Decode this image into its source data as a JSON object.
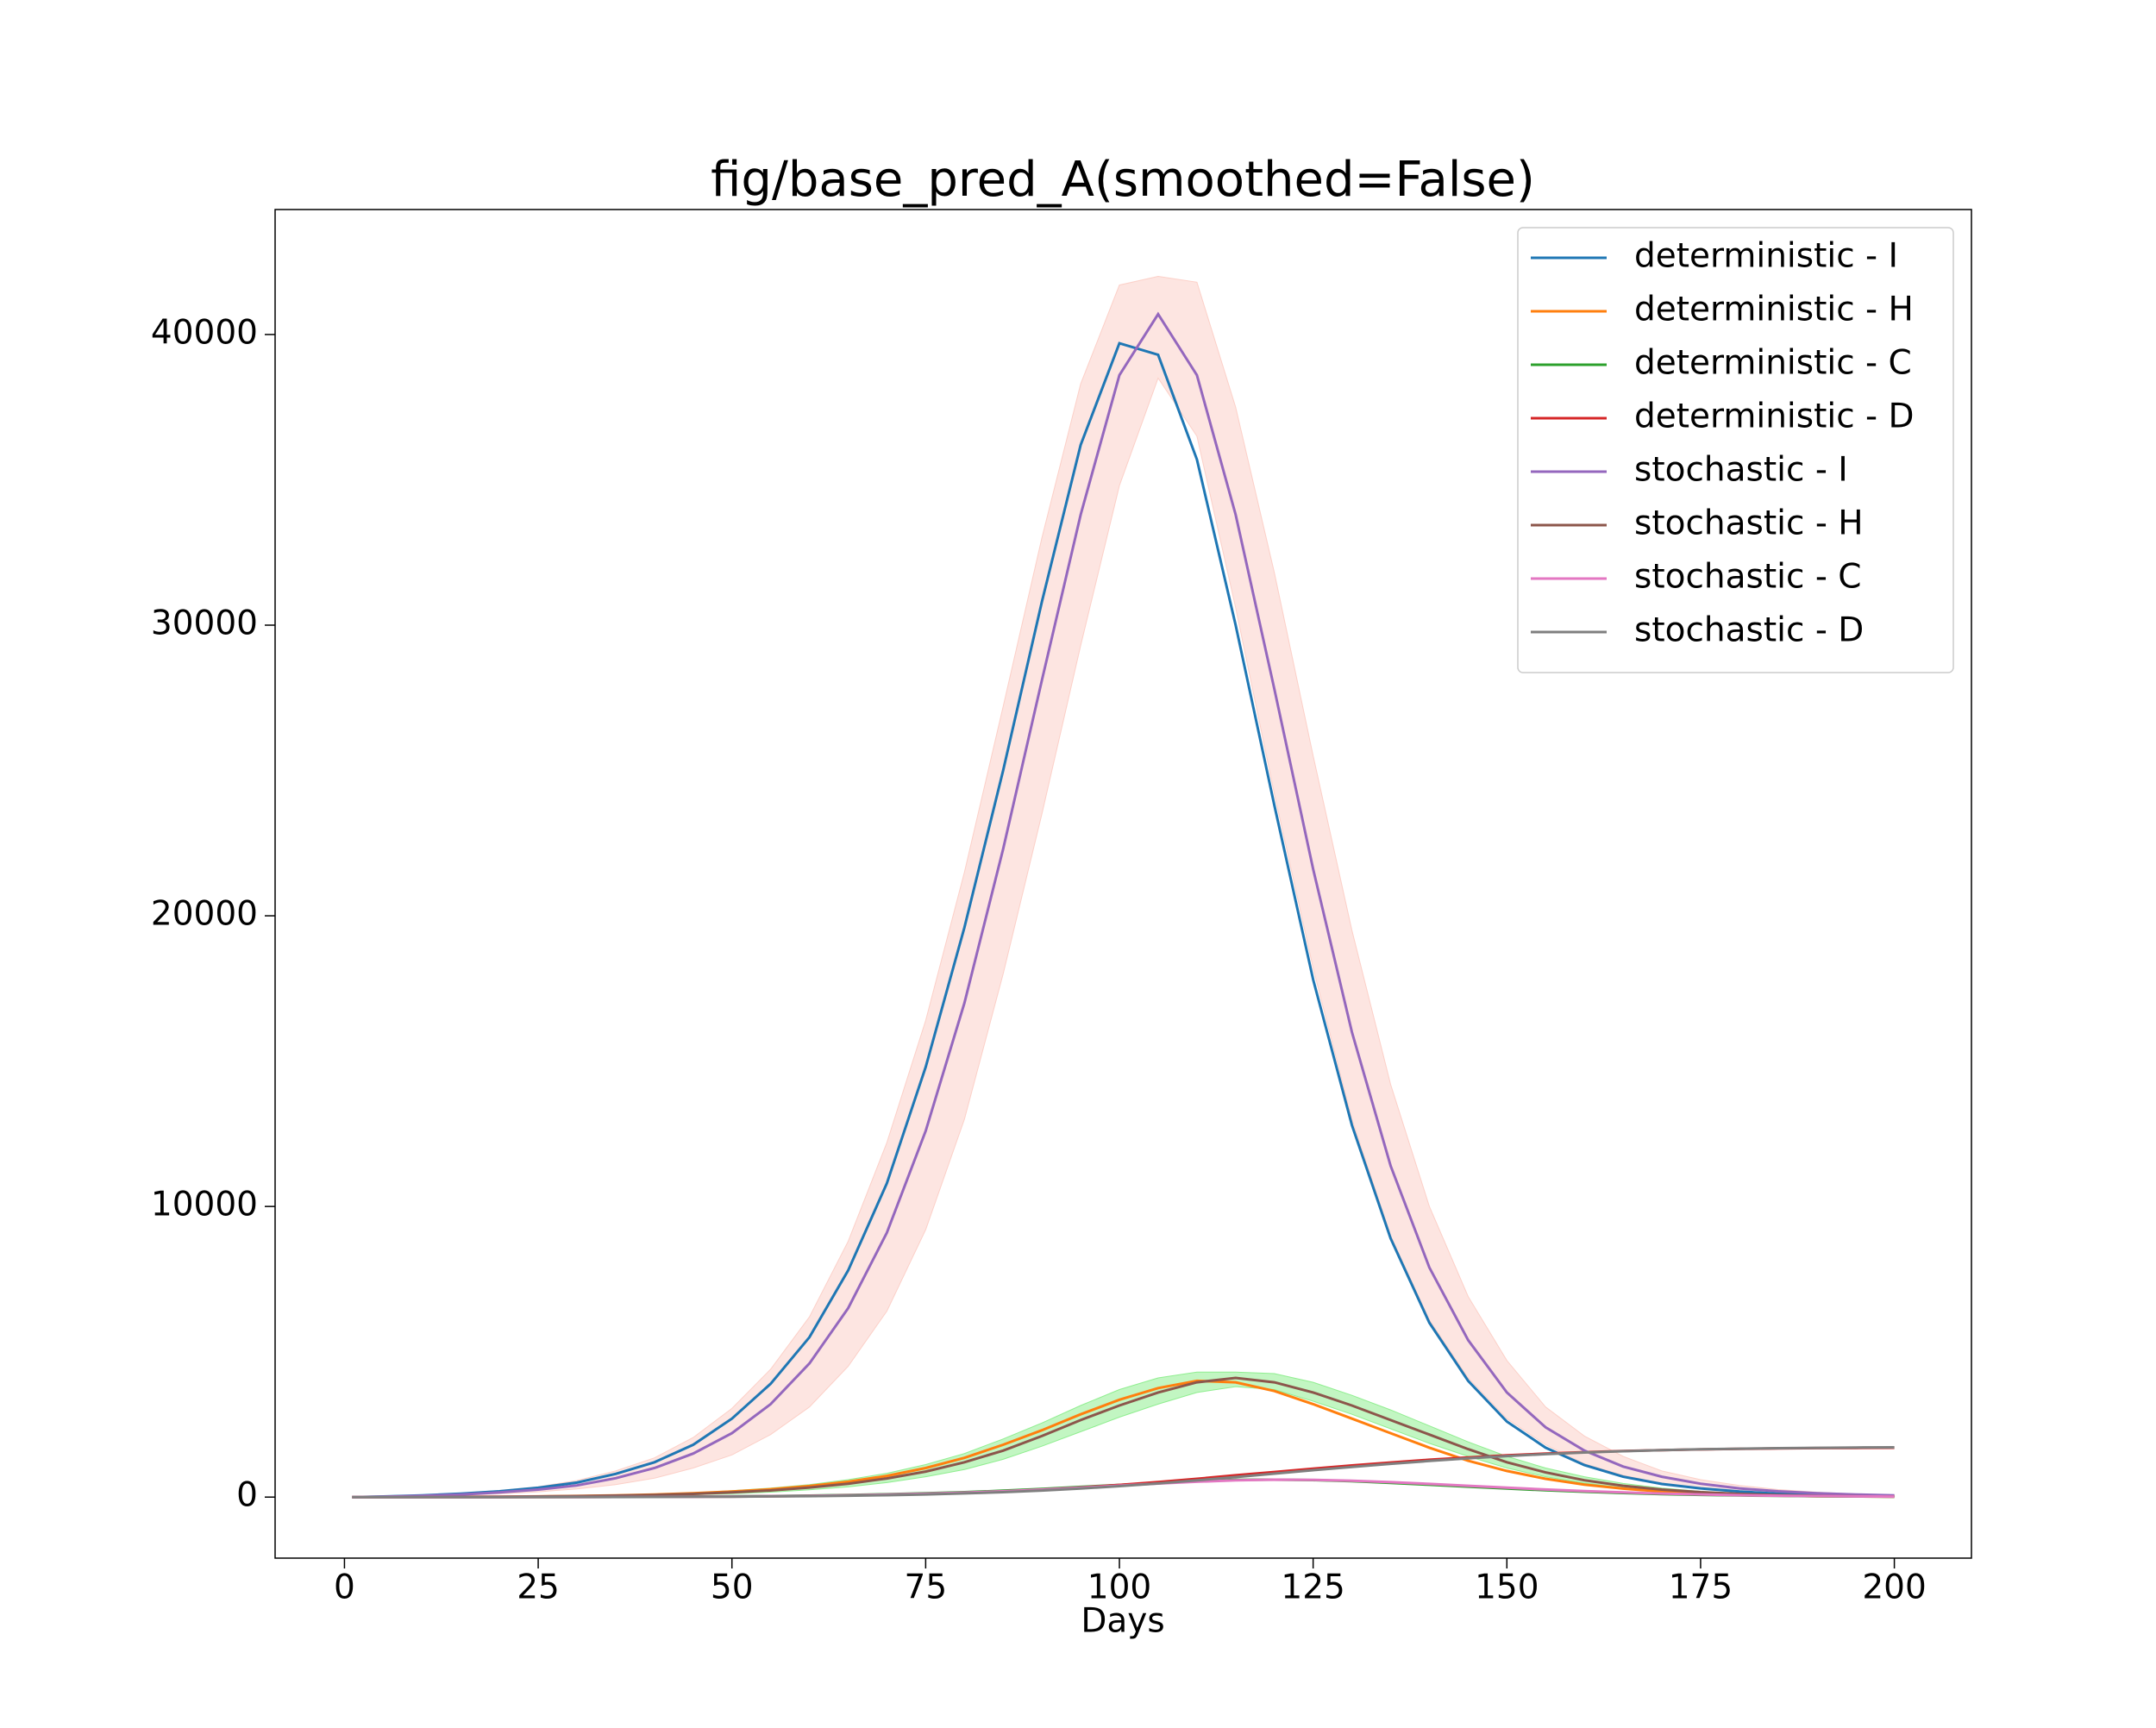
{
  "chart_data": {
    "type": "line",
    "title": "fig/base_pred_A(smoothed=False)",
    "xlabel": "Days",
    "x": [
      1,
      5,
      10,
      15,
      20,
      25,
      30,
      35,
      40,
      45,
      50,
      55,
      60,
      65,
      70,
      75,
      80,
      85,
      90,
      95,
      100,
      105,
      110,
      115,
      120,
      125,
      130,
      135,
      140,
      145,
      150,
      155,
      160,
      165,
      170,
      175,
      180,
      185,
      190,
      195,
      200
    ],
    "xlim": [
      -8.95,
      209.95
    ],
    "xticks": [
      0,
      25,
      50,
      75,
      100,
      125,
      150,
      175,
      200
    ],
    "ylim": [
      -2100,
      44300
    ],
    "yticks": [
      0,
      10000,
      20000,
      30000,
      40000
    ],
    "legend": "upper right",
    "bands": [
      {
        "color": "#fcd0c8",
        "upper": [
          0,
          25,
          70,
          140,
          230,
          360,
          570,
          900,
          1350,
          2050,
          3050,
          4400,
          6200,
          8800,
          12200,
          16400,
          21500,
          27200,
          33000,
          38300,
          41700,
          42000,
          41800,
          37500,
          31800,
          25500,
          19500,
          14200,
          10000,
          6900,
          4700,
          3100,
          2100,
          1400,
          900,
          600,
          400,
          260,
          170,
          110,
          70
        ],
        "lower": [
          0,
          10,
          30,
          60,
          110,
          180,
          280,
          430,
          650,
          1000,
          1450,
          2150,
          3100,
          4500,
          6400,
          9200,
          13000,
          18000,
          23500,
          29300,
          34800,
          38500,
          36500,
          30600,
          24200,
          18200,
          13000,
          9000,
          6100,
          4100,
          2700,
          1800,
          1150,
          750,
          480,
          310,
          200,
          130,
          85,
          55,
          35
        ]
      },
      {
        "color": "#90ee90",
        "upper": [
          0,
          0,
          6,
          12,
          20,
          30,
          45,
          70,
          105,
          150,
          220,
          310,
          430,
          600,
          820,
          1120,
          1500,
          2000,
          2550,
          3150,
          3700,
          4100,
          4300,
          4300,
          4250,
          3950,
          3500,
          3000,
          2450,
          1900,
          1400,
          1000,
          700,
          470,
          310,
          200,
          130,
          85,
          55,
          35,
          22
        ],
        "lower": [
          0,
          0,
          3,
          6,
          9,
          15,
          25,
          38,
          55,
          80,
          120,
          170,
          250,
          350,
          500,
          700,
          950,
          1300,
          1750,
          2250,
          2750,
          3200,
          3600,
          3800,
          3700,
          3300,
          2850,
          2350,
          1850,
          1400,
          1000,
          700,
          480,
          320,
          210,
          135,
          85,
          55,
          35,
          22,
          14
        ]
      }
    ],
    "series": [
      {
        "name": "deterministic - I",
        "color": "#1f77b4",
        "values": [
          0,
          20,
          60,
          120,
          200,
          320,
          500,
          800,
          1200,
          1800,
          2700,
          3900,
          5500,
          7800,
          10800,
          14800,
          19600,
          25000,
          30800,
          36200,
          39700,
          39300,
          35700,
          30000,
          23800,
          17800,
          12800,
          8900,
          6000,
          4000,
          2600,
          1700,
          1100,
          700,
          450,
          300,
          190,
          120,
          80,
          50,
          30
        ]
      },
      {
        "name": "deterministic - H",
        "color": "#ff7f0e",
        "values": [
          0,
          0,
          5,
          10,
          15,
          25,
          40,
          60,
          90,
          130,
          190,
          270,
          380,
          530,
          730,
          1000,
          1350,
          1800,
          2300,
          2850,
          3350,
          3750,
          4000,
          3950,
          3650,
          3200,
          2700,
          2200,
          1700,
          1250,
          900,
          630,
          430,
          290,
          190,
          125,
          80,
          50,
          30,
          20,
          12
        ]
      },
      {
        "name": "deterministic - C",
        "color": "#2ca02c",
        "values": [
          0,
          0,
          0,
          1,
          2,
          3,
          5,
          8,
          12,
          18,
          26,
          37,
          52,
          72,
          98,
          130,
          170,
          220,
          280,
          350,
          420,
          490,
          550,
          590,
          600,
          585,
          545,
          490,
          425,
          360,
          295,
          235,
          185,
          140,
          105,
          78,
          57,
          41,
          30,
          21,
          15
        ]
      },
      {
        "name": "deterministic - D",
        "color": "#d62728",
        "values": [
          0,
          0,
          0,
          0,
          1,
          2,
          3,
          5,
          8,
          13,
          19,
          28,
          40,
          56,
          78,
          107,
          145,
          195,
          256,
          331,
          420,
          520,
          630,
          750,
          865,
          980,
          1090,
          1190,
          1285,
          1365,
          1435,
          1495,
          1545,
          1585,
          1615,
          1640,
          1660,
          1675,
          1685,
          1692,
          1697
        ]
      },
      {
        "name": "stochastic - I",
        "color": "#9467bd",
        "values": [
          0,
          15,
          45,
          90,
          160,
          260,
          400,
          650,
          1000,
          1500,
          2200,
          3200,
          4600,
          6500,
          9100,
          12600,
          17000,
          22300,
          28100,
          33800,
          38600,
          40700,
          38600,
          33800,
          27800,
          21600,
          16000,
          11400,
          7900,
          5400,
          3600,
          2400,
          1600,
          1050,
          700,
          460,
          300,
          200,
          130,
          90,
          60
        ]
      },
      {
        "name": "stochastic - H",
        "color": "#8c564b",
        "values": [
          0,
          0,
          4,
          8,
          12,
          20,
          32,
          50,
          75,
          110,
          160,
          230,
          330,
          460,
          640,
          880,
          1200,
          1600,
          2100,
          2650,
          3150,
          3600,
          3950,
          4100,
          3950,
          3600,
          3150,
          2650,
          2150,
          1650,
          1200,
          850,
          580,
          390,
          260,
          170,
          110,
          70,
          45,
          28,
          18
        ]
      },
      {
        "name": "stochastic - C",
        "color": "#e377c2",
        "values": [
          0,
          0,
          0,
          1,
          2,
          3,
          4,
          7,
          10,
          15,
          22,
          32,
          45,
          63,
          87,
          117,
          155,
          200,
          258,
          325,
          395,
          465,
          530,
          575,
          600,
          595,
          565,
          515,
          455,
          390,
          325,
          262,
          207,
          160,
          122,
          91,
          67,
          49,
          35,
          25,
          18
        ]
      },
      {
        "name": "stochastic - D",
        "color": "#7f7f7f",
        "values": [
          0,
          0,
          0,
          0,
          1,
          2,
          3,
          4,
          7,
          11,
          16,
          24,
          34,
          48,
          67,
          93,
          127,
          171,
          227,
          295,
          377,
          470,
          575,
          690,
          808,
          925,
          1040,
          1145,
          1245,
          1335,
          1412,
          1478,
          1533,
          1578,
          1614,
          1643,
          1665,
          1682,
          1695,
          1705,
          1712
        ]
      }
    ]
  }
}
